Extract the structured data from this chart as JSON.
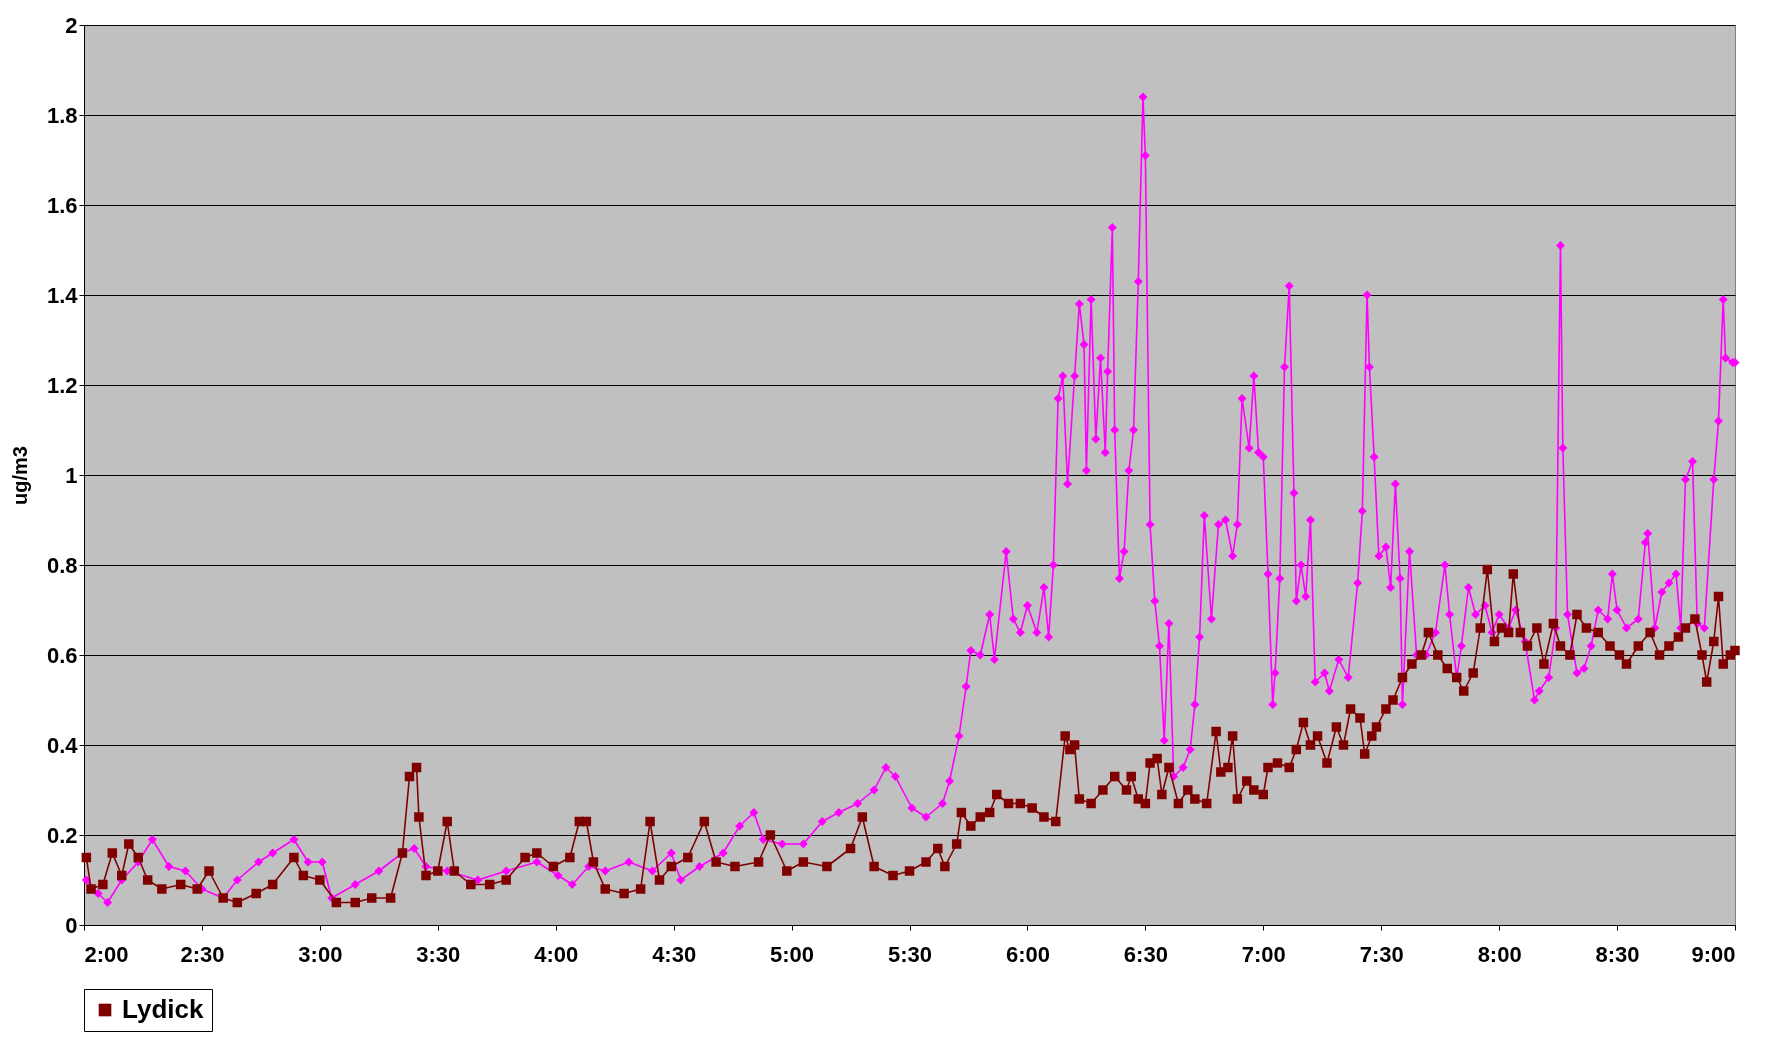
{
  "chart_data": {
    "type": "line",
    "ylabel": "ug/m3",
    "xlim": [
      2,
      9
    ],
    "xticks": [
      {
        "value": 2,
        "label": "2:00"
      },
      {
        "value": 2.5,
        "label": "2:30"
      },
      {
        "value": 3,
        "label": "3:00"
      },
      {
        "value": 3.5,
        "label": "3:30"
      },
      {
        "value": 4,
        "label": "4:00"
      },
      {
        "value": 4.5,
        "label": "4:30"
      },
      {
        "value": 5,
        "label": "5:00"
      },
      {
        "value": 5.5,
        "label": "5:30"
      },
      {
        "value": 6,
        "label": "6:00"
      },
      {
        "value": 6.5,
        "label": "6:30"
      },
      {
        "value": 7,
        "label": "7:00"
      },
      {
        "value": 7.5,
        "label": "7:30"
      },
      {
        "value": 8,
        "label": "8:00"
      },
      {
        "value": 8.5,
        "label": "8:30"
      },
      {
        "value": 9,
        "label": "9:00"
      }
    ],
    "ylim": [
      0,
      2
    ],
    "yticks": [
      0,
      0.2,
      0.4,
      0.6,
      0.8,
      1,
      1.2,
      1.4,
      1.6,
      1.8,
      2
    ],
    "grid": "y",
    "legend": "bottom",
    "line_style": "solid",
    "series": [
      {
        "color": "#ff00ff",
        "marker": "diamond",
        "x": [
          2.01,
          2.06,
          2.1,
          2.16,
          2.23,
          2.29,
          2.36,
          2.43,
          2.5,
          2.59,
          2.65,
          2.74,
          2.8,
          2.89,
          2.95,
          3.01,
          3.05,
          3.15,
          3.25,
          3.35,
          3.4,
          3.45,
          3.54,
          3.67,
          3.79,
          3.92,
          4.01,
          4.07,
          4.14,
          4.21,
          4.31,
          4.41,
          4.49,
          4.53,
          4.61,
          4.71,
          4.78,
          4.84,
          4.88,
          4.96,
          5.05,
          5.13,
          5.2,
          5.28,
          5.35,
          5.4,
          5.44,
          5.51,
          5.57,
          5.64,
          5.67,
          5.71,
          5.74,
          5.76,
          5.8,
          5.84,
          5.86,
          5.91,
          5.94,
          5.97,
          6.0,
          6.04,
          6.07,
          6.09,
          6.11,
          6.13,
          6.15,
          6.17,
          6.2,
          6.22,
          6.24,
          6.25,
          6.27,
          6.29,
          6.31,
          6.33,
          6.34,
          6.36,
          6.37,
          6.39,
          6.41,
          6.43,
          6.45,
          6.47,
          6.49,
          6.5,
          6.52,
          6.54,
          6.56,
          6.58,
          6.6,
          6.62,
          6.66,
          6.69,
          6.71,
          6.73,
          6.75,
          6.78,
          6.81,
          6.84,
          6.87,
          6.89,
          6.91,
          6.94,
          6.96,
          6.98,
          7.0,
          7.02,
          7.04,
          7.05,
          7.07,
          7.09,
          7.11,
          7.13,
          7.14,
          7.16,
          7.18,
          7.2,
          7.22,
          7.26,
          7.28,
          7.32,
          7.36,
          7.4,
          7.42,
          7.44,
          7.45,
          7.47,
          7.49,
          7.52,
          7.54,
          7.56,
          7.58,
          7.59,
          7.62,
          7.65,
          7.69,
          7.73,
          7.77,
          7.79,
          7.82,
          7.84,
          7.87,
          7.9,
          7.94,
          7.97,
          8.0,
          8.04,
          8.07,
          8.11,
          8.15,
          8.17,
          8.21,
          8.24,
          8.26,
          8.27,
          8.29,
          8.33,
          8.36,
          8.39,
          8.42,
          8.46,
          8.48,
          8.5,
          8.54,
          8.59,
          8.62,
          8.63,
          8.66,
          8.69,
          8.72,
          8.75,
          8.77,
          8.79,
          8.82,
          8.84,
          8.87,
          8.91,
          8.93,
          8.95,
          8.96,
          8.99,
          9.0
        ],
        "values": [
          0.1,
          0.07,
          0.05,
          0.1,
          0.14,
          0.19,
          0.13,
          0.12,
          0.08,
          0.06,
          0.1,
          0.14,
          0.16,
          0.19,
          0.14,
          0.14,
          0.06,
          0.09,
          0.12,
          0.16,
          0.17,
          0.13,
          0.12,
          0.1,
          0.12,
          0.14,
          0.11,
          0.09,
          0.13,
          0.12,
          0.14,
          0.12,
          0.16,
          0.1,
          0.13,
          0.16,
          0.22,
          0.25,
          0.19,
          0.18,
          0.18,
          0.23,
          0.25,
          0.27,
          0.3,
          0.35,
          0.33,
          0.26,
          0.24,
          0.27,
          0.32,
          0.42,
          0.53,
          0.61,
          0.6,
          0.69,
          0.59,
          0.83,
          0.68,
          0.65,
          0.71,
          0.65,
          0.75,
          0.64,
          0.8,
          1.17,
          1.22,
          0.98,
          1.22,
          1.38,
          1.29,
          1.01,
          1.39,
          1.08,
          1.26,
          1.05,
          1.23,
          1.55,
          1.1,
          0.77,
          0.83,
          1.01,
          1.1,
          1.43,
          1.84,
          1.71,
          0.89,
          0.72,
          0.62,
          0.41,
          0.67,
          0.33,
          0.35,
          0.39,
          0.49,
          0.64,
          0.91,
          0.68,
          0.89,
          0.9,
          0.82,
          0.89,
          1.17,
          1.06,
          1.22,
          1.05,
          1.04,
          0.78,
          0.49,
          0.56,
          0.77,
          1.24,
          1.42,
          0.96,
          0.72,
          0.8,
          0.73,
          0.9,
          0.54,
          0.56,
          0.52,
          0.59,
          0.55,
          0.76,
          0.92,
          1.4,
          1.24,
          1.04,
          0.82,
          0.84,
          0.75,
          0.98,
          0.77,
          0.49,
          0.83,
          0.6,
          0.6,
          0.65,
          0.8,
          0.69,
          0.55,
          0.62,
          0.75,
          0.69,
          0.71,
          0.65,
          0.69,
          0.66,
          0.7,
          0.63,
          0.5,
          0.52,
          0.55,
          0.66,
          1.51,
          1.06,
          0.69,
          0.56,
          0.57,
          0.62,
          0.7,
          0.68,
          0.78,
          0.7,
          0.66,
          0.68,
          0.85,
          0.87,
          0.66,
          0.74,
          0.76,
          0.78,
          0.66,
          0.99,
          1.03,
          0.67,
          0.66,
          0.99,
          1.12,
          1.39,
          1.26,
          1.25,
          1.25
        ]
      },
      {
        "name": "Lydick",
        "color": "#800000",
        "marker": "square",
        "x": [
          2.01,
          2.03,
          2.08,
          2.12,
          2.16,
          2.19,
          2.23,
          2.27,
          2.33,
          2.41,
          2.48,
          2.53,
          2.59,
          2.65,
          2.73,
          2.8,
          2.89,
          2.93,
          3.0,
          3.07,
          3.15,
          3.22,
          3.3,
          3.35,
          3.38,
          3.41,
          3.42,
          3.45,
          3.5,
          3.54,
          3.57,
          3.64,
          3.72,
          3.79,
          3.87,
          3.92,
          3.99,
          4.06,
          4.1,
          4.13,
          4.16,
          4.21,
          4.29,
          4.36,
          4.4,
          4.44,
          4.49,
          4.56,
          4.63,
          4.68,
          4.76,
          4.86,
          4.91,
          4.98,
          5.05,
          5.15,
          5.25,
          5.3,
          5.35,
          5.43,
          5.5,
          5.57,
          5.62,
          5.65,
          5.7,
          5.72,
          5.76,
          5.8,
          5.84,
          5.87,
          5.92,
          5.97,
          6.02,
          6.07,
          6.12,
          6.16,
          6.18,
          6.2,
          6.22,
          6.27,
          6.32,
          6.37,
          6.42,
          6.44,
          6.47,
          6.5,
          6.52,
          6.55,
          6.57,
          6.6,
          6.64,
          6.68,
          6.71,
          6.76,
          6.8,
          6.82,
          6.85,
          6.87,
          6.89,
          6.93,
          6.96,
          7.0,
          7.02,
          7.06,
          7.11,
          7.14,
          7.17,
          7.2,
          7.23,
          7.27,
          7.31,
          7.34,
          7.37,
          7.41,
          7.43,
          7.46,
          7.48,
          7.52,
          7.55,
          7.59,
          7.63,
          7.67,
          7.7,
          7.74,
          7.78,
          7.82,
          7.85,
          7.89,
          7.92,
          7.95,
          7.98,
          8.01,
          8.04,
          8.06,
          8.09,
          8.12,
          8.16,
          8.19,
          8.23,
          8.26,
          8.3,
          8.33,
          8.37,
          8.42,
          8.47,
          8.51,
          8.54,
          8.59,
          8.64,
          8.68,
          8.72,
          8.76,
          8.79,
          8.83,
          8.86,
          8.88,
          8.91,
          8.93,
          8.95,
          8.98,
          9.0
        ],
        "values": [
          0.15,
          0.08,
          0.09,
          0.16,
          0.11,
          0.18,
          0.15,
          0.1,
          0.08,
          0.09,
          0.08,
          0.12,
          0.06,
          0.05,
          0.07,
          0.09,
          0.15,
          0.11,
          0.1,
          0.05,
          0.05,
          0.06,
          0.06,
          0.16,
          0.33,
          0.35,
          0.24,
          0.11,
          0.12,
          0.23,
          0.12,
          0.09,
          0.09,
          0.1,
          0.15,
          0.16,
          0.13,
          0.15,
          0.23,
          0.23,
          0.14,
          0.08,
          0.07,
          0.08,
          0.23,
          0.1,
          0.13,
          0.15,
          0.23,
          0.14,
          0.13,
          0.14,
          0.2,
          0.12,
          0.14,
          0.13,
          0.17,
          0.24,
          0.13,
          0.11,
          0.12,
          0.14,
          0.17,
          0.13,
          0.18,
          0.25,
          0.22,
          0.24,
          0.25,
          0.29,
          0.27,
          0.27,
          0.26,
          0.24,
          0.23,
          0.42,
          0.39,
          0.4,
          0.28,
          0.27,
          0.3,
          0.33,
          0.3,
          0.33,
          0.28,
          0.27,
          0.36,
          0.37,
          0.29,
          0.35,
          0.27,
          0.3,
          0.28,
          0.27,
          0.43,
          0.34,
          0.35,
          0.42,
          0.28,
          0.32,
          0.3,
          0.29,
          0.35,
          0.36,
          0.35,
          0.39,
          0.45,
          0.4,
          0.42,
          0.36,
          0.44,
          0.4,
          0.48,
          0.46,
          0.38,
          0.42,
          0.44,
          0.48,
          0.5,
          0.55,
          0.58,
          0.6,
          0.65,
          0.6,
          0.57,
          0.55,
          0.52,
          0.56,
          0.66,
          0.79,
          0.63,
          0.66,
          0.65,
          0.78,
          0.65,
          0.62,
          0.66,
          0.58,
          0.67,
          0.62,
          0.6,
          0.69,
          0.66,
          0.65,
          0.62,
          0.6,
          0.58,
          0.62,
          0.65,
          0.6,
          0.62,
          0.64,
          0.66,
          0.68,
          0.6,
          0.54,
          0.63,
          0.73,
          0.58,
          0.6,
          0.61
        ]
      }
    ]
  }
}
